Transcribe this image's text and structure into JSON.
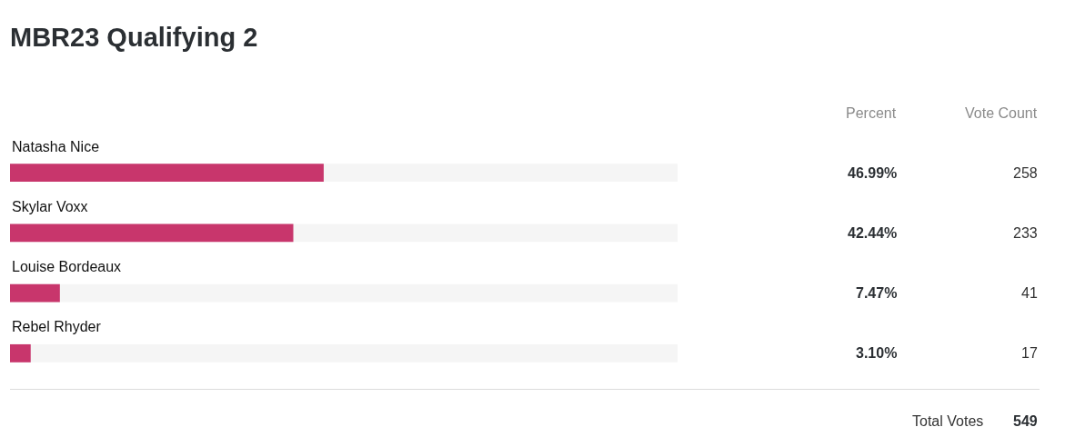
{
  "chart_data": {
    "type": "bar",
    "orientation": "horizontal",
    "title": "MBR23 Qualifying 2",
    "categories": [
      "Natasha Nice",
      "Skylar Voxx",
      "Louise Bordeaux",
      "Rebel Rhyder"
    ],
    "values": [
      46.99,
      42.44,
      7.47,
      3.1
    ],
    "color": "#c8366c",
    "value_labels": [
      "46.99%",
      "42.44%",
      "7.47%",
      "3.10%"
    ],
    "xlim": [
      0,
      100
    ],
    "tick_labels": "y",
    "annotations": [
      "Percent",
      "Vote Count",
      "258",
      "233",
      "41",
      "17",
      "Total Votes",
      "549"
    ]
  }
}
